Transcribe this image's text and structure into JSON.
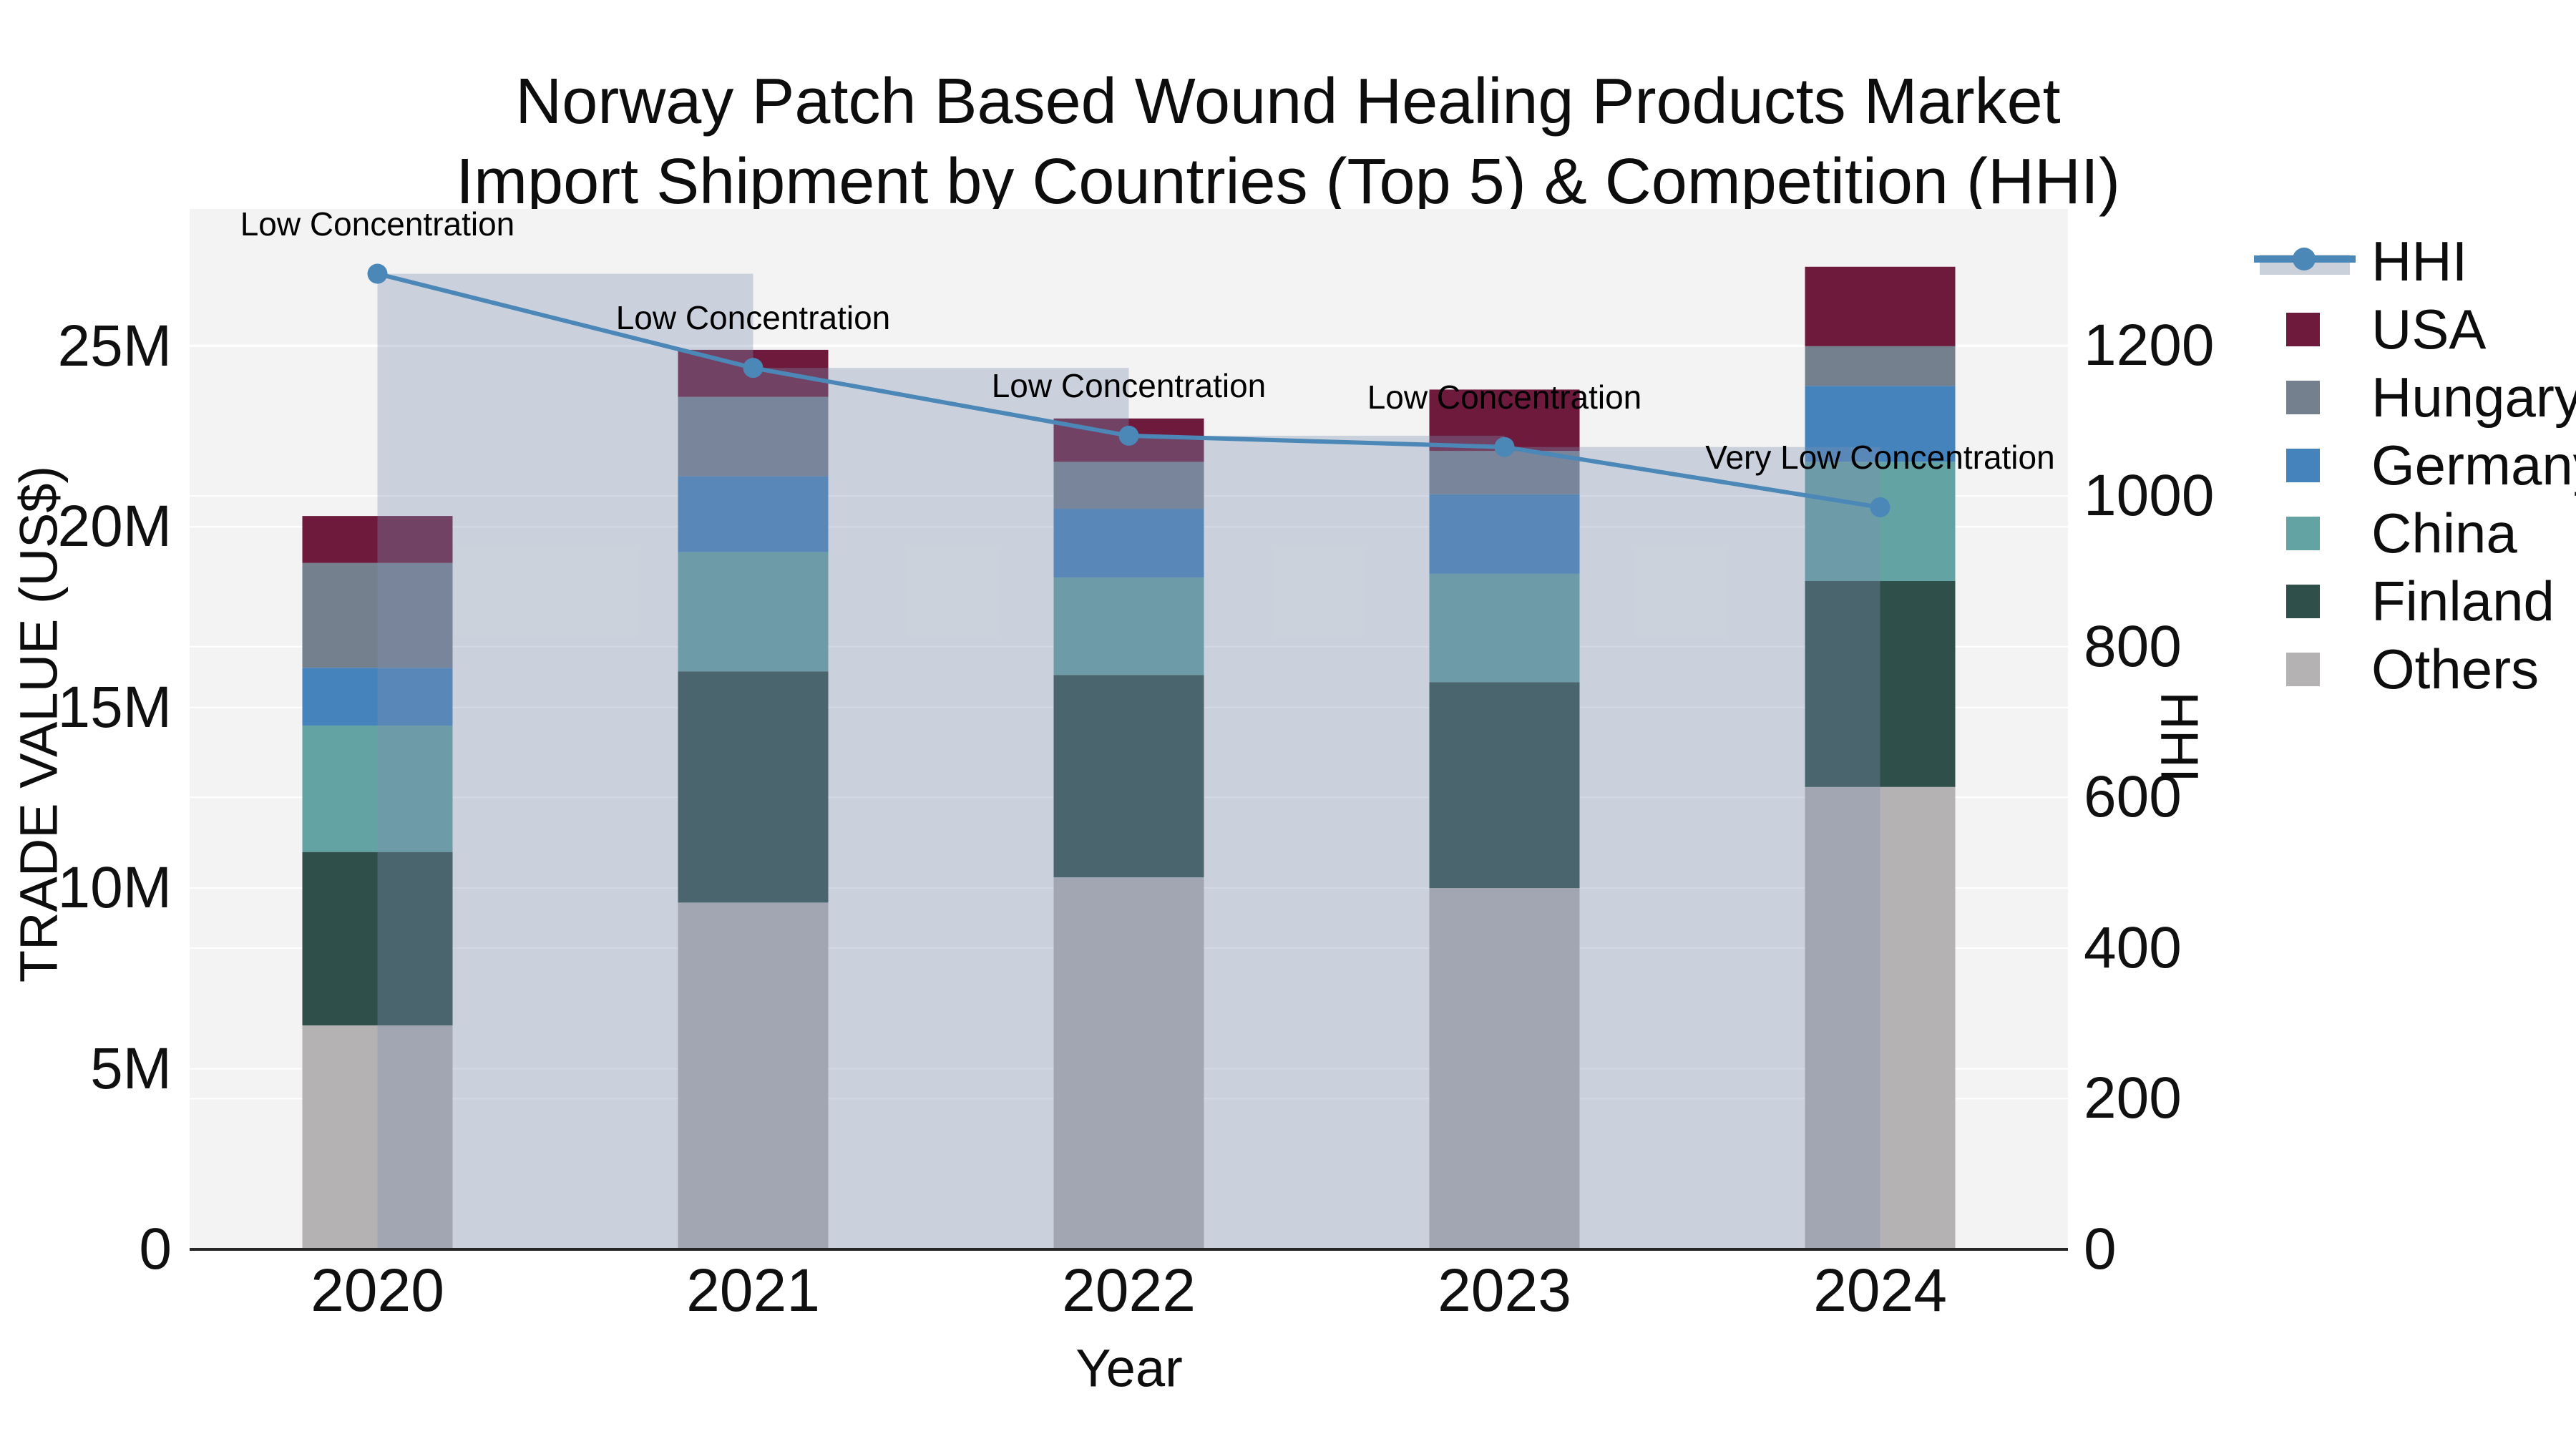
{
  "title": {
    "line1": "Norway Patch Based Wound Healing Products Market",
    "line2": "Import Shipment by Countries (Top 5) & Competition (HHI)"
  },
  "axes": {
    "x_title": "Year",
    "y_left_title": "TRADE VALUE (US$)",
    "y_right_title": "HHI",
    "y_left_ticks": [
      {
        "label": "0",
        "value": 0
      },
      {
        "label": "5M",
        "value": 5
      },
      {
        "label": "10M",
        "value": 10
      },
      {
        "label": "15M",
        "value": 15
      },
      {
        "label": "20M",
        "value": 20
      },
      {
        "label": "25M",
        "value": 25
      }
    ],
    "y_right_ticks": [
      {
        "label": "0",
        "value": 0
      },
      {
        "label": "200",
        "value": 200
      },
      {
        "label": "400",
        "value": 400
      },
      {
        "label": "600",
        "value": 600
      },
      {
        "label": "800",
        "value": 800
      },
      {
        "label": "1000",
        "value": 1000
      },
      {
        "label": "1200",
        "value": 1200
      }
    ]
  },
  "chart_data": {
    "type": "stacked-bar+line",
    "categories": [
      "2020",
      "2021",
      "2022",
      "2023",
      "2024"
    ],
    "bar_value_unit": "million US$ (trade value, left axis)",
    "stack_order_bottom_to_top": [
      "Others",
      "Finland",
      "China",
      "Germany",
      "Hungary",
      "USA"
    ],
    "series": [
      {
        "name": "USA",
        "color": "#6d1a3d",
        "values": [
          1.3,
          1.3,
          1.2,
          1.7,
          2.2
        ]
      },
      {
        "name": "Hungary",
        "color": "#75808f",
        "values": [
          2.9,
          2.2,
          1.3,
          1.2,
          1.1
        ]
      },
      {
        "name": "Germany",
        "color": "#4583bd",
        "values": [
          1.6,
          2.1,
          1.9,
          2.2,
          2.1
        ]
      },
      {
        "name": "China",
        "color": "#64a3a4",
        "values": [
          3.5,
          3.3,
          2.7,
          3.0,
          3.3
        ]
      },
      {
        "name": "Finland",
        "color": "#2f4f4b",
        "values": [
          4.8,
          6.4,
          5.6,
          5.7,
          5.7
        ]
      },
      {
        "name": "Others",
        "color": "#b4b2b3",
        "values": [
          6.2,
          9.6,
          10.3,
          10.0,
          12.8
        ]
      }
    ],
    "bar_totals": [
      20.3,
      24.9,
      23.0,
      23.8,
      27.2
    ],
    "hhi": {
      "name": "HHI",
      "unit": "HHI index (right axis)",
      "color": "#4b87b7",
      "band_color": "rgba(127,145,175,0.34)",
      "band_legend_color": "#cbd1db",
      "values": [
        1295,
        1170,
        1080,
        1065,
        985
      ]
    },
    "annotations": [
      {
        "category": "2020",
        "text": "Low Concentration"
      },
      {
        "category": "2021",
        "text": "Low Concentration"
      },
      {
        "category": "2022",
        "text": "Low Concentration"
      },
      {
        "category": "2023",
        "text": "Low Concentration"
      },
      {
        "category": "2024",
        "text": "Very Low Concentration"
      }
    ],
    "layout": {
      "legend_position": "right",
      "grid": true,
      "plot_bg": "#f3f3f3",
      "grid_color": "#ffffff",
      "axis_line_color": "#262626",
      "ylim_left": [
        0,
        28.8
      ],
      "ylim_right": [
        0,
        1381
      ],
      "bar_width_frac": 0.4
    }
  },
  "legend": {
    "items": [
      {
        "label": "HHI",
        "type": "line"
      },
      {
        "label": "USA",
        "type": "swatch"
      },
      {
        "label": "Hungary",
        "type": "swatch"
      },
      {
        "label": "Germany",
        "type": "swatch"
      },
      {
        "label": "China",
        "type": "swatch"
      },
      {
        "label": "Finland",
        "type": "swatch"
      },
      {
        "label": "Others",
        "type": "swatch"
      }
    ]
  }
}
